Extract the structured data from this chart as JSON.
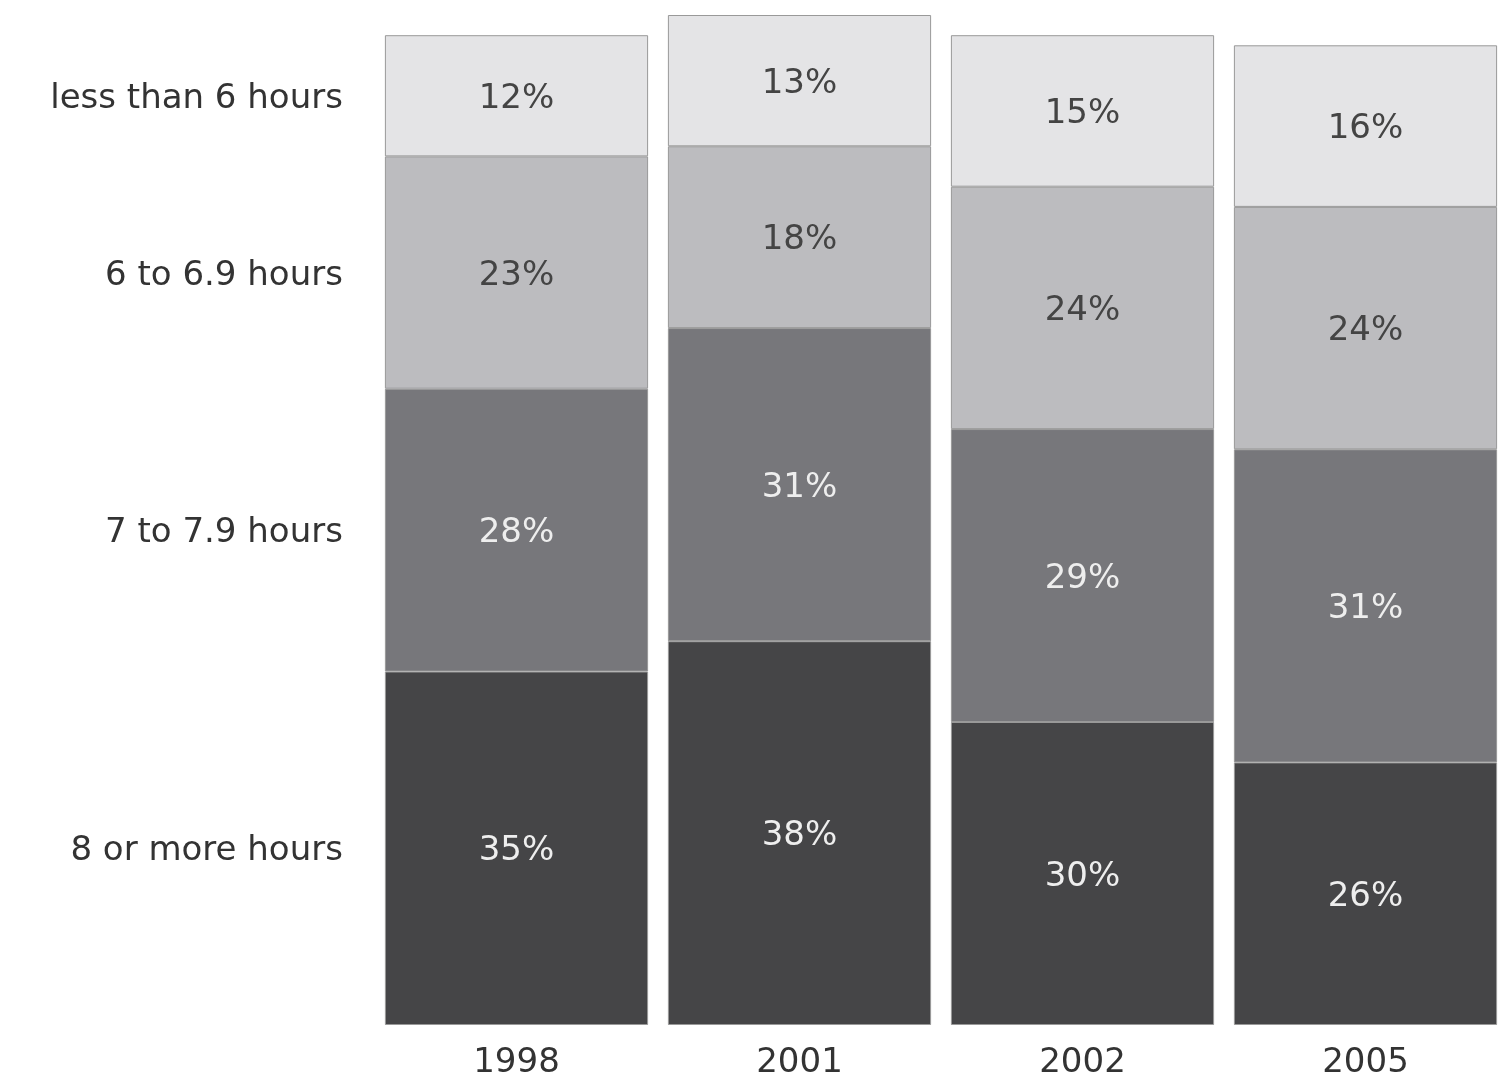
{
  "chart_data": {
    "type": "bar",
    "stacked": true,
    "categories": [
      "1998",
      "2001",
      "2002",
      "2005"
    ],
    "series": [
      {
        "name": "8 or more hours",
        "color": "#454547",
        "values": [
          35,
          38,
          30,
          26
        ],
        "value_labels": [
          "35%",
          "38%",
          "30%",
          "26%"
        ]
      },
      {
        "name": "7 to 7.9 hours",
        "color": "#77777b",
        "values": [
          28,
          31,
          29,
          31
        ],
        "value_labels": [
          "28%",
          "31%",
          "29%",
          "31%"
        ]
      },
      {
        "name": "6 to 6.9 hours",
        "color": "#bcbcbf",
        "values": [
          23,
          18,
          24,
          24
        ],
        "value_labels": [
          "23%",
          "18%",
          "24%",
          "24%"
        ]
      },
      {
        "name": "less than 6 hours",
        "color": "#e4e4e6",
        "values": [
          12,
          13,
          15,
          16
        ],
        "value_labels": [
          "12%",
          "13%",
          "15%",
          "16%"
        ]
      }
    ]
  }
}
